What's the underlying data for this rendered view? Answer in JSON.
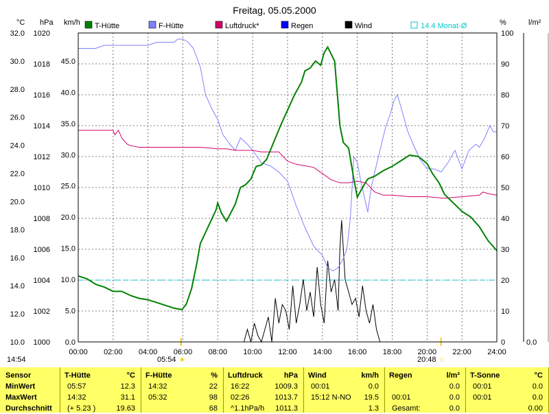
{
  "chart_data": {
    "type": "line",
    "title": "Freitag, 05.05.2000",
    "axes": {
      "temp_unit": "°C",
      "pressure_unit": "hPa",
      "wind_unit": "km/h",
      "humidity_unit": "%",
      "rain_unit": "l/m²",
      "temp_ticks": [
        "32.0",
        "30.0",
        "28.0",
        "26.0",
        "24.0",
        "22.0",
        "20.0",
        "18.0",
        "16.0",
        "14.0",
        "12.0",
        "10.0"
      ],
      "pressure_ticks": [
        "1020",
        "1018",
        "1016",
        "1014",
        "1012",
        "1010",
        "1008",
        "1006",
        "1004",
        "1002",
        "1000"
      ],
      "wind_ticks": [
        "45.0",
        "40.0",
        "35.0",
        "30.0",
        "25.0",
        "20.0",
        "15.0",
        "10.0",
        "5.0",
        "0.0"
      ],
      "humidity_ticks": [
        "100",
        "90",
        "80",
        "70",
        "60",
        "50",
        "40",
        "30",
        "20",
        "10",
        "0"
      ],
      "rain_ticks": [
        "0.0"
      ],
      "x_ticks": [
        "00:00",
        "02:00",
        "04:00",
        "06:00",
        "08:00",
        "10:00",
        "12:00",
        "14:00",
        "16:00",
        "18:00",
        "20:00",
        "22:00",
        "24:00"
      ],
      "temp_range": [
        10,
        32
      ],
      "humidity_range": [
        0,
        100
      ],
      "pressure_range": [
        1000,
        1020
      ],
      "wind_range": [
        0,
        49.5
      ],
      "x_range_hours": [
        0,
        24
      ]
    },
    "legend": [
      {
        "name": "T-Hütte",
        "color": "#008000"
      },
      {
        "name": "F-Hütte",
        "color": "#8080ff"
      },
      {
        "name": "Luftdruck*",
        "color": "#d0006a"
      },
      {
        "name": "Regen",
        "color": "#0000ff"
      },
      {
        "name": "Wind",
        "color": "#000000"
      }
    ],
    "monthly_avg": {
      "label": "14.4 Monat-Ø",
      "value": 14.4,
      "color": "#00c8c8"
    },
    "sunrise": "05:54",
    "sunset": "20:48",
    "clock": "14:54",
    "series": [
      {
        "name": "T-Hütte",
        "axis": "temp",
        "color": "#008000",
        "x": [
          0,
          0.5,
          1,
          1.5,
          2,
          2.5,
          3,
          3.5,
          4,
          4.5,
          5,
          5.5,
          5.95,
          6.2,
          6.5,
          6.8,
          7,
          7.3,
          7.6,
          7.9,
          8,
          8.2,
          8.5,
          9,
          9.3,
          9.6,
          9.9,
          10.2,
          10.5,
          10.8,
          11,
          11.3,
          11.6,
          12,
          12.4,
          12.8,
          13,
          13.3,
          13.6,
          13.9,
          14.1,
          14.3,
          14.5,
          14.7,
          14.9,
          15.0,
          15.2,
          15.5,
          15.8,
          16.0,
          16.3,
          16.6,
          17,
          17.5,
          18,
          18.5,
          19,
          19.5,
          20,
          20.3,
          20.7,
          21,
          21.5,
          22,
          22.5,
          23,
          23.5,
          24
        ],
        "y": [
          14.7,
          14.5,
          14.1,
          13.9,
          13.6,
          13.6,
          13.3,
          13.1,
          13.0,
          12.8,
          12.6,
          12.4,
          12.3,
          12.7,
          13.8,
          15.6,
          17.0,
          17.8,
          18.6,
          19.4,
          19.9,
          19.2,
          18.6,
          19.8,
          21.0,
          21.2,
          21.6,
          22.5,
          22.6,
          23.0,
          23.6,
          24.5,
          25.4,
          26.5,
          27.6,
          28.5,
          29.3,
          29.5,
          30.0,
          29.7,
          30.6,
          31.0,
          30.5,
          30.0,
          27.0,
          25.4,
          24.2,
          23.8,
          21.6,
          20.3,
          21.0,
          21.6,
          21.8,
          22.2,
          22.5,
          22.9,
          23.3,
          23.2,
          22.7,
          22.0,
          21.3,
          20.5,
          19.9,
          19.3,
          18.9,
          18.2,
          17.2,
          16.5
        ]
      },
      {
        "name": "F-Hütte",
        "axis": "humidity",
        "color": "#8080ff",
        "x": [
          0,
          0.5,
          1,
          1.5,
          2,
          2.5,
          3,
          3.5,
          4,
          4.5,
          5,
          5.5,
          5.7,
          6,
          6.3,
          6.6,
          7,
          7.3,
          7.7,
          8,
          8.3,
          8.7,
          9,
          9.3,
          9.7,
          10,
          10.5,
          11,
          11.5,
          12,
          12.5,
          13,
          13.5,
          14,
          14.3,
          14.6,
          14.9,
          15.2,
          15.4,
          15.6,
          15.8,
          16.0,
          16.2,
          16.4,
          16.6,
          16.8,
          17,
          17.3,
          17.6,
          17.9,
          18.1,
          18.3,
          18.6,
          18.9,
          19.2,
          19.6,
          20,
          20.4,
          20.8,
          21.2,
          21.6,
          22,
          22.4,
          22.8,
          23,
          23.3,
          23.6,
          23.8,
          24
        ],
        "y": [
          95,
          95,
          95,
          96,
          96,
          96,
          96,
          96,
          96,
          97,
          97,
          97,
          98,
          98,
          97,
          95,
          89,
          80,
          75,
          72,
          67,
          64,
          62,
          66,
          64,
          62,
          58,
          57,
          55,
          52,
          44,
          37,
          31,
          28,
          24,
          23,
          24,
          27,
          30,
          40,
          60,
          58,
          52,
          47,
          42,
          50,
          55,
          62,
          69,
          74,
          78,
          80,
          74,
          68,
          64,
          59,
          56,
          56,
          55,
          58,
          62,
          56,
          62,
          64,
          63,
          66,
          70,
          68,
          68
        ]
      },
      {
        "name": "Luftdruck*",
        "axis": "pressure",
        "color": "#d0006a",
        "x": [
          0,
          0.5,
          1,
          1.5,
          2,
          2.1,
          2.3,
          2.5,
          2.8,
          3,
          3.5,
          4,
          5,
          6,
          7,
          8,
          8.5,
          9,
          9.5,
          10,
          10.5,
          11,
          11.5,
          12,
          12.5,
          13,
          13.5,
          14,
          14.5,
          15,
          15.5,
          16,
          16.5,
          17,
          17.5,
          18,
          19,
          20,
          21,
          22,
          23,
          23.2,
          23.5,
          24
        ],
        "y": [
          1013.7,
          1013.7,
          1013.7,
          1013.7,
          1013.7,
          1013.4,
          1013.7,
          1013.2,
          1012.8,
          1012.7,
          1012.6,
          1012.6,
          1012.6,
          1012.6,
          1012.6,
          1012.5,
          1012.5,
          1012.4,
          1012.4,
          1012.4,
          1012.3,
          1012.3,
          1012.3,
          1011.7,
          1011.5,
          1011.4,
          1011.3,
          1010.9,
          1010.5,
          1010.3,
          1010.3,
          1010.4,
          1010.3,
          1009.7,
          1009.5,
          1009.5,
          1009.4,
          1009.4,
          1009.3,
          1009.4,
          1009.5,
          1009.7,
          1009.6,
          1009.5
        ]
      },
      {
        "name": "Wind",
        "axis": "wind",
        "color": "#000000",
        "x": [
          9.5,
          9.7,
          9.9,
          10.1,
          10.3,
          10.5,
          10.7,
          10.9,
          11.1,
          11.3,
          11.5,
          11.7,
          11.9,
          12.1,
          12.3,
          12.5,
          12.7,
          12.9,
          13.1,
          13.3,
          13.5,
          13.7,
          13.9,
          14.1,
          14.3,
          14.5,
          14.7,
          14.9,
          15.0,
          15.1,
          15.3,
          15.5,
          15.7,
          15.9,
          16.1,
          16.3,
          16.5,
          16.7,
          16.9,
          17.1,
          17.3,
          17.5
        ],
        "y": [
          0,
          2,
          0,
          3,
          1,
          0,
          2,
          4,
          0,
          7,
          3,
          6,
          5,
          2,
          9,
          3,
          6,
          10,
          5,
          8,
          4,
          12,
          6,
          3,
          13,
          8,
          10,
          5,
          15,
          19.5,
          10,
          8,
          6,
          7,
          4,
          9,
          5,
          3,
          6,
          2,
          0,
          0
        ]
      }
    ]
  },
  "stats": {
    "clock": "14:54",
    "sensor_header": "Sensor",
    "row_labels": [
      "MinWert",
      "MaxWert",
      "Durchschnitt"
    ],
    "panels": [
      {
        "name": "T-Hütte",
        "unit": "°C",
        "rows": [
          [
            "05:57",
            "12.3"
          ],
          [
            "14:32",
            "31.1"
          ],
          [
            "(+ 5.23 )",
            "19.63"
          ]
        ]
      },
      {
        "name": "F-Hütte",
        "unit": "%",
        "rows": [
          [
            "14:32",
            "22"
          ],
          [
            "05:32",
            "98"
          ],
          [
            "",
            "68"
          ]
        ]
      },
      {
        "name": "Luftdruck",
        "unit": "hPa",
        "rows": [
          [
            "16:22",
            "1009.3"
          ],
          [
            "02:26",
            "1013.7"
          ],
          [
            "^1.1hPa/h",
            "1011.3"
          ]
        ]
      },
      {
        "name": "Wind",
        "unit": "km/h",
        "rows": [
          [
            "00:01",
            "0.0"
          ],
          [
            "15:12  N-NO",
            "19.5"
          ],
          [
            "",
            "1.3"
          ]
        ]
      },
      {
        "name": "Regen",
        "unit": "l/m²",
        "rows": [
          [
            "",
            "0.0"
          ],
          [
            "00:01",
            "0.0"
          ],
          [
            "Gesamt:",
            "0.0"
          ]
        ]
      },
      {
        "name": "T-Sonne",
        "unit": "°C",
        "rows": [
          [
            "00:01",
            "0.0"
          ],
          [
            "00:01",
            "0.0"
          ],
          [
            "",
            "0.00"
          ]
        ]
      }
    ]
  }
}
